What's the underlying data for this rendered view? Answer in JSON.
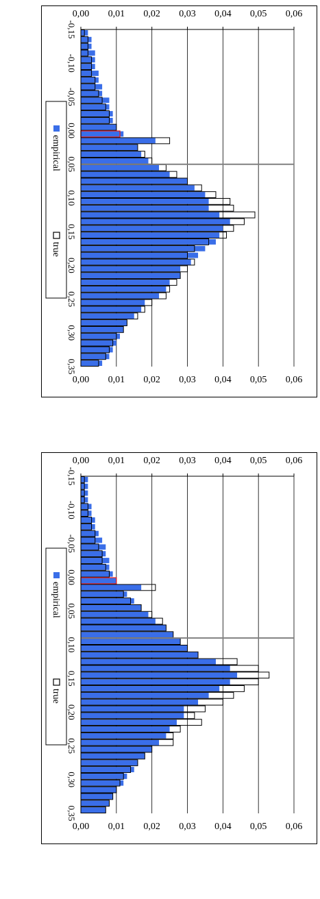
{
  "chart_data": [
    {
      "type": "bar",
      "ylim": [
        0,
        0.06
      ],
      "yticks": [
        "0,00",
        "0,01",
        "0,02",
        "0,03",
        "0,04",
        "0,05",
        "0,06"
      ],
      "xlim": [
        -0.15,
        0.35
      ],
      "xticks": [
        "-0,15",
        "-0,10",
        "-0,05",
        "0,00",
        "0,05",
        "0,10",
        "0,15",
        "0,20",
        "0,25",
        "0,30",
        "0,35"
      ],
      "bin_start": -0.15,
      "bin_width": 0.01,
      "grid": true,
      "legend_position": "right",
      "vline_x": 0.09,
      "highlight_x": 0.0,
      "series": [
        {
          "name": "empirical",
          "color": "#3a6ee8",
          "values": [
            0.002,
            0.002,
            0.002,
            0.002,
            0.003,
            0.003,
            0.004,
            0.004,
            0.005,
            0.006,
            0.007,
            0.007,
            0.008,
            0.008,
            0.009,
            0.01,
            0.017,
            0.013,
            0.015,
            0.017,
            0.019,
            0.021,
            0.024,
            0.026,
            0.028,
            0.03,
            0.033,
            0.038,
            0.042,
            0.044,
            0.042,
            0.039,
            0.036,
            0.033,
            0.029,
            0.029,
            0.027,
            0.025,
            0.024,
            0.022,
            0.02,
            0.018,
            0.016,
            0.015,
            0.013,
            0.012,
            0.01,
            0.009,
            0.008,
            0.007
          ]
        },
        {
          "name": "true",
          "color": "#ffffff",
          "values": [
            0.001,
            0.001,
            0.001,
            0.001,
            0.002,
            0.002,
            0.003,
            0.003,
            0.004,
            0.004,
            0.005,
            0.006,
            0.006,
            0.007,
            0.008,
            0.01,
            0.021,
            0.012,
            0.014,
            0.017,
            0.02,
            0.023,
            0.024,
            0.026,
            0.028,
            0.03,
            0.033,
            0.044,
            0.05,
            0.053,
            0.05,
            0.046,
            0.043,
            0.04,
            0.035,
            0.032,
            0.034,
            0.028,
            0.026,
            0.026,
            0.02,
            0.018,
            0.016,
            0.014,
            0.012,
            0.011,
            0.01,
            0.009,
            0.008,
            0.007
          ]
        }
      ]
    },
    {
      "type": "bar",
      "ylim": [
        0,
        0.06
      ],
      "yticks": [
        "0,00",
        "0,01",
        "0,02",
        "0,03",
        "0,04",
        "0,05",
        "0,06"
      ],
      "xlim": [
        -0.15,
        0.35
      ],
      "xticks": [
        "-0,15",
        "-0,10",
        "-0,05",
        "0,00",
        "0,05",
        "0,10",
        "0,15",
        "0,20",
        "0,25",
        "0,30",
        "0,35"
      ],
      "bin_start": -0.15,
      "bin_width": 0.01,
      "grid": true,
      "legend_position": "right",
      "vline_x": 0.05,
      "highlight_x": 0.0,
      "series": [
        {
          "name": "empirical",
          "color": "#3a6ee8",
          "values": [
            0.002,
            0.003,
            0.003,
            0.004,
            0.004,
            0.004,
            0.005,
            0.005,
            0.006,
            0.006,
            0.008,
            0.008,
            0.009,
            0.009,
            0.01,
            0.012,
            0.021,
            0.016,
            0.017,
            0.019,
            0.022,
            0.025,
            0.03,
            0.032,
            0.035,
            0.036,
            0.036,
            0.039,
            0.042,
            0.04,
            0.039,
            0.038,
            0.035,
            0.033,
            0.031,
            0.028,
            0.028,
            0.025,
            0.024,
            0.022,
            0.018,
            0.017,
            0.015,
            0.013,
            0.012,
            0.011,
            0.01,
            0.009,
            0.008,
            0.006
          ]
        },
        {
          "name": "true",
          "color": "#ffffff",
          "values": [
            0.001,
            0.002,
            0.002,
            0.002,
            0.003,
            0.003,
            0.003,
            0.004,
            0.004,
            0.005,
            0.006,
            0.007,
            0.008,
            0.008,
            0.01,
            0.011,
            0.025,
            0.016,
            0.018,
            0.02,
            0.024,
            0.027,
            0.03,
            0.034,
            0.038,
            0.042,
            0.043,
            0.049,
            0.046,
            0.043,
            0.041,
            0.036,
            0.032,
            0.03,
            0.032,
            0.03,
            0.028,
            0.027,
            0.025,
            0.024,
            0.02,
            0.018,
            0.016,
            0.013,
            0.012,
            0.01,
            0.009,
            0.008,
            0.007,
            0.005
          ]
        }
      ]
    }
  ]
}
